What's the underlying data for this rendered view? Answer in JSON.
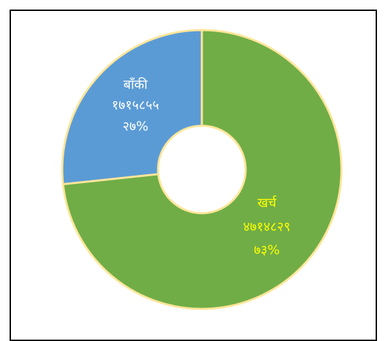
{
  "chart_data": {
    "type": "pie",
    "donut": true,
    "slices": [
      {
        "label": "बाँकी",
        "value_text": "१७१५८५५",
        "percent_text": "२७%",
        "value": 1715855,
        "percent": 27,
        "color": "#5B9BD5",
        "label_color": "#ffffff"
      },
      {
        "label": "खर्च",
        "value_text": "४७१४८२९",
        "percent_text": "७३%",
        "value": 4714829,
        "percent": 73,
        "color": "#70AD47",
        "label_color": "#FFFF00"
      }
    ],
    "border_color": "#FFE699",
    "start_angle": "top, slice 2 clockwise"
  }
}
